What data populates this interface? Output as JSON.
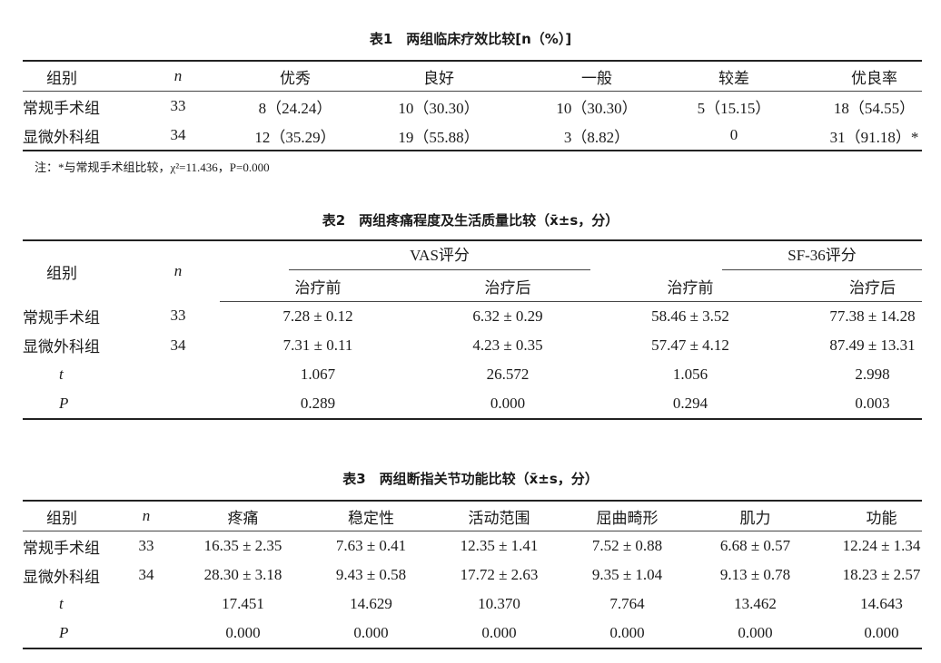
{
  "table1": {
    "title": "表1　两组临床疗效比较[n（%）]",
    "headers": [
      "组别",
      "n",
      "优秀",
      "良好",
      "一般",
      "较差",
      "优良率"
    ],
    "rows": [
      [
        "常规手术组",
        "33",
        "8（24.24）",
        "10（30.30）",
        "10（30.30）",
        "5（15.15）",
        "18（54.55）"
      ],
      [
        "显微外科组",
        "34",
        "12（35.29）",
        "19（55.88）",
        "3（8.82）",
        "0",
        "31（91.18）*"
      ]
    ],
    "note": "注：*与常规手术组比较，χ²=11.436，P=0.000"
  },
  "table2": {
    "title": "表2　两组疼痛程度及生活质量比较（x̄±s，分）",
    "group_header": "组别",
    "n_header": "n",
    "span_headers": [
      "VAS评分",
      "SF-36评分"
    ],
    "sub_headers": [
      "治疗前",
      "治疗后",
      "治疗前",
      "治疗后"
    ],
    "rows": [
      [
        "常规手术组",
        "33",
        "7.28 ± 0.12",
        "6.32 ± 0.29",
        "58.46 ± 3.52",
        "77.38 ± 14.28"
      ],
      [
        "显微外科组",
        "34",
        "7.31 ± 0.11",
        "4.23 ± 0.35",
        "57.47 ± 4.12",
        "87.49 ± 13.31"
      ],
      [
        "t",
        "",
        "1.067",
        "26.572",
        "1.056",
        "2.998"
      ],
      [
        "P",
        "",
        "0.289",
        "0.000",
        "0.294",
        "0.003"
      ]
    ]
  },
  "table3": {
    "title": "表3　两组断指关节功能比较（x̄±s，分）",
    "headers": [
      "组别",
      "n",
      "疼痛",
      "稳定性",
      "活动范围",
      "屈曲畸形",
      "肌力",
      "功能"
    ],
    "rows": [
      [
        "常规手术组",
        "33",
        "16.35 ± 2.35",
        "7.63 ± 0.41",
        "12.35 ± 1.41",
        "7.52 ± 0.88",
        "6.68 ± 0.57",
        "12.24 ± 1.34"
      ],
      [
        "显微外科组",
        "34",
        "28.30 ± 3.18",
        "9.43 ± 0.58",
        "17.72 ± 2.63",
        "9.35 ± 1.04",
        "9.13 ± 0.78",
        "18.23 ± 2.57"
      ],
      [
        "t",
        "",
        "17.451",
        "14.629",
        "10.370",
        "7.764",
        "13.462",
        "14.643"
      ],
      [
        "P",
        "",
        "0.000",
        "0.000",
        "0.000",
        "0.000",
        "0.000",
        "0.000"
      ]
    ]
  }
}
